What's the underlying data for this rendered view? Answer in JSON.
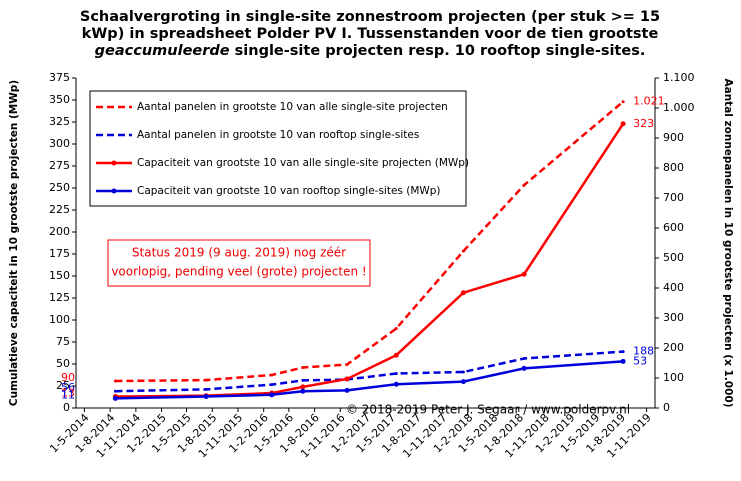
{
  "chart_data": {
    "type": "line",
    "title": [
      "Schaalvergroting in single-site zonnestroom projecten (per stuk >= 15",
      "kWp) in spreadsheet Polder PV I. Tussenstanden voor de tien grootste",
      [
        "geaccumuleerde",
        " single-site projecten resp. 10 rooftop single-sites."
      ]
    ],
    "ylabel": "Cumulatieve capaciteit in 10 grootste projecten (MWp)",
    "y2label": "Aantal zonnepanelen in 10 grootste projecten (x 1.000)",
    "annotation": [
      "Status 2019 (9 aug. 2019) nog zéér",
      "voorlopig, pending veel (grote) projecten !"
    ],
    "copyright": "© 2018-2019 Peter J. Segaar / www.polderpv.nl",
    "categories": [
      "1-5-2014",
      "1-8-2014",
      "1-11-2014",
      "1-2-2015",
      "1-5-2015",
      "1-8-2015",
      "1-11-2015",
      "1-2-2016",
      "1-5-2016",
      "1-8-2016",
      "1-11-2016",
      "1-2-2017",
      "1-5-2017",
      "1-8-2017",
      "1-11-2017",
      "1-2-2018",
      "1-5-2018",
      "1-8-2018",
      "1-11-2018",
      "1-2-2019",
      "1-5-2019",
      "1-8-2019",
      "1-11-2019"
    ],
    "xlim": [
      "1-4-2014",
      "1-12-2019"
    ],
    "x": [
      "20-8-2014",
      "10-7-2015",
      "1-3-2016",
      "20-6-2016",
      "25-11-2016",
      "20-5-2017",
      "15-1-2018",
      "20-8-2018",
      "9-8-2019"
    ],
    "ylim": [
      0,
      375
    ],
    "yticks": [
      0,
      25,
      50,
      75,
      100,
      125,
      150,
      175,
      200,
      225,
      250,
      275,
      300,
      325,
      350,
      375
    ],
    "y2lim": [
      0,
      1100
    ],
    "y2ticks": [
      0,
      100,
      200,
      300,
      400,
      500,
      600,
      700,
      800,
      900,
      {
        "value": 1000,
        "label": "1.000"
      },
      {
        "value": 1100,
        "label": "1.100"
      }
    ],
    "legend": "top-left",
    "series": [
      {
        "name": "Aantal panelen in grootste 10 van alle single-site projecten",
        "color": "#ff0000",
        "dashed": true,
        "axis": "y2",
        "values": [
          90,
          93,
          110,
          135,
          145,
          265,
          523,
          743,
          1021
        ],
        "value_labels": [
          "90",
          null,
          null,
          null,
          null,
          null,
          null,
          null,
          "1.021"
        ]
      },
      {
        "name": "Aantal panelen in grootste 10 van rooftop single-sites",
        "color": "#0000dd",
        "dashed": true,
        "axis": "y2",
        "values": [
          56,
          62,
          78,
          92,
          95,
          115,
          120,
          165,
          188
        ],
        "value_labels": [
          "56",
          null,
          null,
          null,
          null,
          null,
          null,
          null,
          "188"
        ]
      },
      {
        "name": "Capaciteit van grootste 10 van alle single-site projecten (MWp)",
        "color": "#ff0000",
        "dashed": false,
        "values": [
          13,
          14,
          17,
          24,
          33,
          60,
          131,
          152,
          323
        ],
        "value_labels": [
          "13",
          null,
          null,
          null,
          null,
          null,
          null,
          null,
          "323"
        ]
      },
      {
        "name": "Capaciteit van grootste 10 van rooftop single-sites (MWp)",
        "color": "#0000dd",
        "dashed": false,
        "values": [
          11,
          13,
          15,
          19,
          20,
          27,
          30,
          45,
          53
        ],
        "value_labels": [
          "11",
          null,
          null,
          null,
          null,
          null,
          null,
          null,
          "53"
        ]
      }
    ]
  }
}
